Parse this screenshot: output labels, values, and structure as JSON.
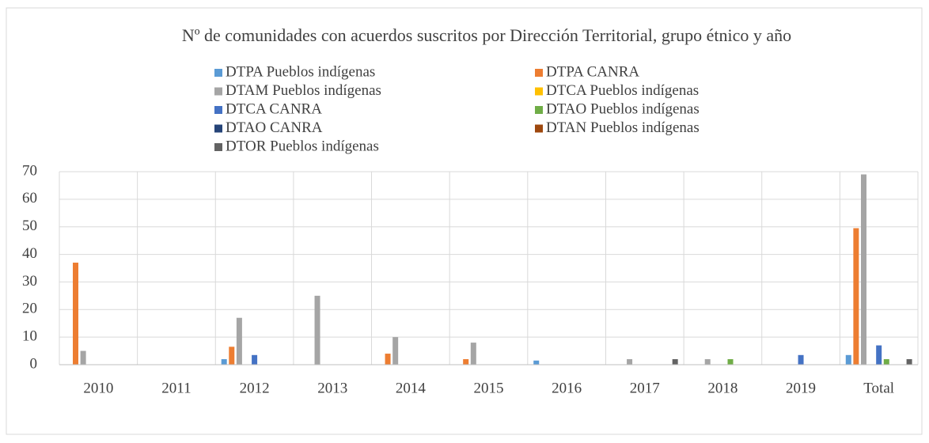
{
  "chart_data": {
    "type": "bar",
    "title": "Nº de comunidades con acuerdos suscritos por Dirección Territorial, grupo étnico y año",
    "categories": [
      "2010",
      "2011",
      "2012",
      "2013",
      "2014",
      "2015",
      "2016",
      "2017",
      "2018",
      "2019",
      "Total"
    ],
    "series": [
      {
        "name": "DTPA Pueblos indígenas",
        "color": "#5b9bd5",
        "values": [
          null,
          null,
          2,
          null,
          null,
          null,
          1.5,
          null,
          null,
          null,
          3.5
        ]
      },
      {
        "name": "DTPA CANRA",
        "color": "#ed7d31",
        "values": [
          37,
          null,
          6.5,
          null,
          4,
          2,
          null,
          null,
          null,
          null,
          49.5
        ]
      },
      {
        "name": "DTAM Pueblos indígenas",
        "color": "#a5a5a5",
        "values": [
          5,
          null,
          17,
          25,
          10,
          8,
          null,
          2,
          2,
          null,
          69
        ]
      },
      {
        "name": "DTCA Pueblos indígenas",
        "color": "#ffc000",
        "values": [
          null,
          null,
          null,
          null,
          null,
          null,
          null,
          null,
          null,
          null,
          null
        ]
      },
      {
        "name": "DTCA CANRA",
        "color": "#4472c4",
        "values": [
          null,
          null,
          3.5,
          null,
          null,
          null,
          null,
          null,
          null,
          3.5,
          7
        ]
      },
      {
        "name": "DTAO Pueblos indígenas",
        "color": "#70ad47",
        "values": [
          null,
          null,
          null,
          null,
          null,
          null,
          null,
          null,
          2,
          null,
          2
        ]
      },
      {
        "name": "DTAO CANRA",
        "color": "#264478",
        "values": [
          null,
          null,
          null,
          null,
          null,
          null,
          null,
          null,
          null,
          null,
          null
        ]
      },
      {
        "name": "DTAN Pueblos indígenas",
        "color": "#9e480e",
        "values": [
          null,
          null,
          null,
          null,
          null,
          null,
          null,
          null,
          null,
          null,
          null
        ]
      },
      {
        "name": "DTOR Pueblos indígenas",
        "color": "#636363",
        "values": [
          null,
          null,
          null,
          null,
          null,
          null,
          null,
          2,
          null,
          null,
          2
        ]
      }
    ],
    "ylim": [
      0,
      70
    ],
    "yticks": [
      0,
      10,
      20,
      30,
      40,
      50,
      60,
      70
    ],
    "grid": true
  }
}
